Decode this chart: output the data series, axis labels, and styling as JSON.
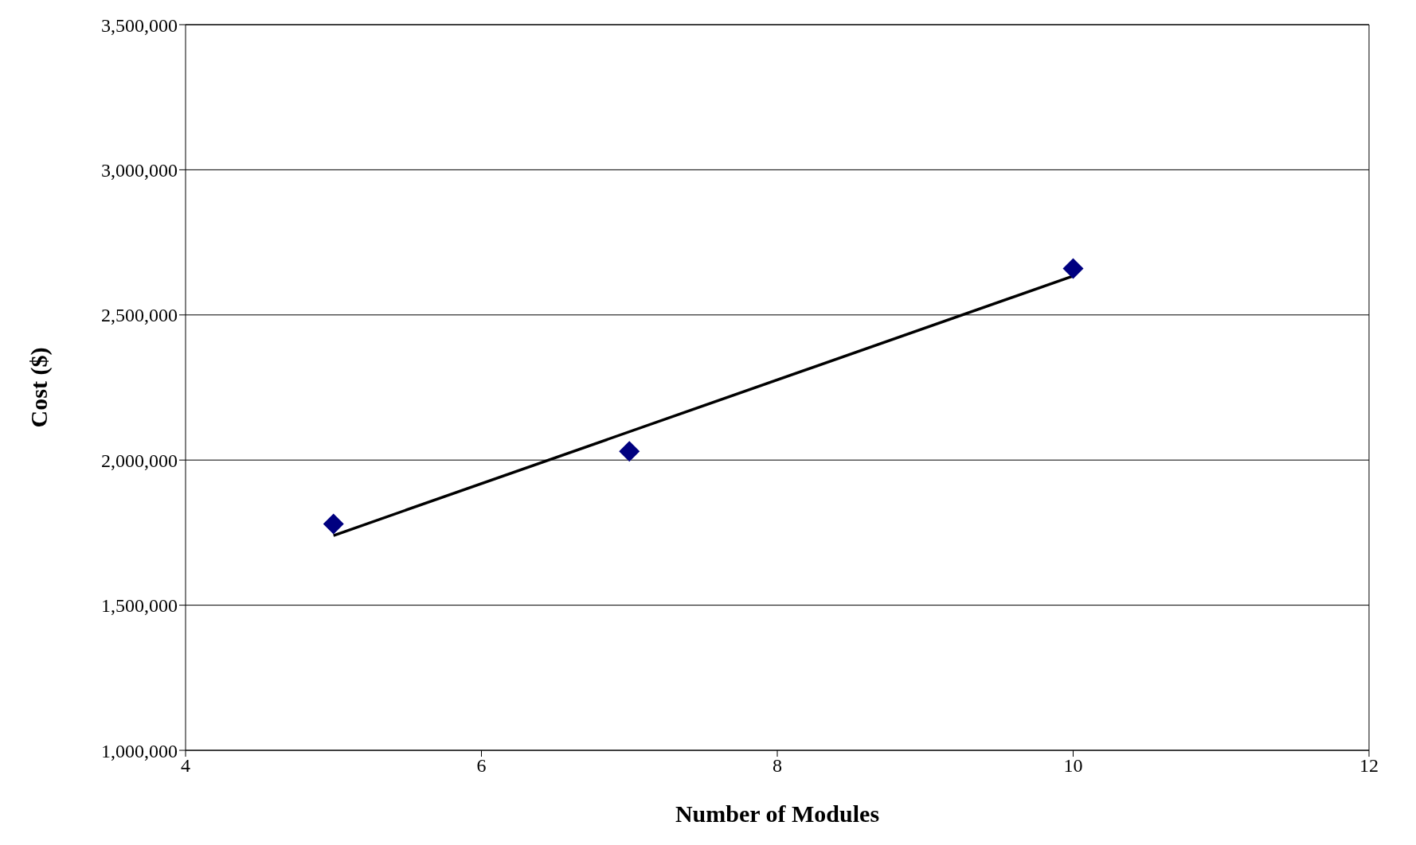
{
  "chart_data": {
    "type": "scatter",
    "xlabel": "Number of Modules",
    "ylabel": "Cost ($)",
    "xlim": [
      4,
      12
    ],
    "xticks": [
      4,
      6,
      8,
      10,
      12
    ],
    "ylim": [
      1000000,
      3500000
    ],
    "yticks": [
      {
        "value": 1000000,
        "label": "1,000,000"
      },
      {
        "value": 1500000,
        "label": "1,500,000"
      },
      {
        "value": 2000000,
        "label": "2,000,000"
      },
      {
        "value": 2500000,
        "label": "2,500,000"
      },
      {
        "value": 3000000,
        "label": "3,000,000"
      },
      {
        "value": 3500000,
        "label": "3,500,000"
      }
    ],
    "grid": "y",
    "series": [
      {
        "type": "scatter",
        "color": "#000080",
        "marker": "diamond",
        "x": [
          5,
          7,
          10
        ],
        "values": [
          1780000,
          2030000,
          2660000
        ]
      },
      {
        "type": "line",
        "color": "#000000",
        "marker": "none",
        "line_style": "solid",
        "x": [
          5,
          10
        ],
        "values": [
          1740000,
          2634000
        ]
      }
    ]
  }
}
